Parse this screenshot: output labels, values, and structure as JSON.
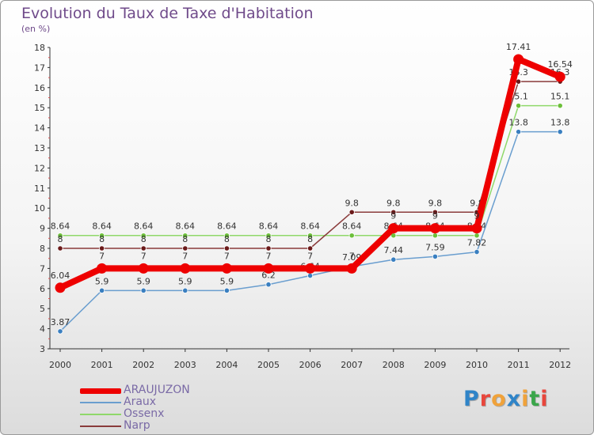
{
  "title": "Evolution du Taux de Taxe d'Habitation",
  "subtitle": "(en %)",
  "logo": {
    "text": "Proxiti",
    "letter_colors": [
      "#2f84c8",
      "#e8463c",
      "#f0a23a",
      "#2f84c8",
      "#f0a23a",
      "#3aa64a",
      "#e8463c"
    ]
  },
  "chart_data": {
    "type": "line",
    "title": "Evolution du Taux de Taxe d'Habitation",
    "subtitle": "(en %)",
    "xlabel": "",
    "ylabel": "(en %)",
    "ylim": [
      3,
      18
    ],
    "yticks": [
      3,
      4,
      5,
      6,
      7,
      8,
      9,
      10,
      11,
      12,
      13,
      14,
      15,
      16,
      17,
      18
    ],
    "grid": false,
    "legend_position": "bottom-left",
    "categories": [
      "2000",
      "2001",
      "2002",
      "2003",
      "2004",
      "2005",
      "2006",
      "2007",
      "2008",
      "2009",
      "2010",
      "2011",
      "2012"
    ],
    "series": [
      {
        "name": "Ossenx",
        "color": "#8fd86a",
        "marker": "#6cbf3a",
        "values": [
          8.64,
          8.64,
          8.64,
          8.64,
          8.64,
          8.64,
          8.64,
          8.64,
          8.64,
          8.64,
          8.64,
          15.1,
          15.1
        ],
        "labels": [
          "8.64",
          "8.64",
          "8.64",
          "8.64",
          "8.64",
          "8.64",
          "8.64",
          "8.64",
          "8.64",
          "8.64",
          "8.64",
          "15.1",
          "15.1"
        ]
      },
      {
        "name": "Narp",
        "color": "#8a3b3b",
        "marker": "#6b1a1a",
        "values": [
          8,
          8,
          8,
          8,
          8,
          8,
          8,
          9.8,
          9.8,
          9.8,
          9.8,
          16.3,
          16.3
        ],
        "labels": [
          "8",
          "8",
          "8",
          "8",
          "8",
          "8",
          "8",
          "9.8",
          "9.8",
          "9.8",
          "9.8",
          "16.3",
          "16.3"
        ]
      },
      {
        "name": "Araux",
        "color": "#6a9ecf",
        "marker": "#3a7fc0",
        "values": [
          3.87,
          5.9,
          5.9,
          5.9,
          5.9,
          6.2,
          6.64,
          7.09,
          7.44,
          7.59,
          7.82,
          13.8,
          13.8
        ],
        "labels": [
          "3.87",
          "5.9",
          "5.9",
          "5.9",
          "5.9",
          "6.2",
          "6.64",
          "7.09",
          "7.44",
          "7.59",
          "7.82",
          "13.8",
          "13.8"
        ]
      },
      {
        "name": "ARAUJUZON",
        "color": "#ee0000",
        "marker": "#ee0000",
        "values": [
          6.04,
          7,
          7,
          7,
          7,
          7,
          7,
          7,
          9,
          9,
          9,
          17.41,
          16.54
        ],
        "labels": [
          "6.04",
          "7",
          "7",
          "7",
          "7",
          "7",
          "7",
          "7",
          "9",
          "9",
          "9",
          "17.41",
          "16.54"
        ]
      }
    ],
    "legend": [
      "ARAUJUZON",
      "Araux",
      "Ossenx",
      "Narp"
    ]
  }
}
